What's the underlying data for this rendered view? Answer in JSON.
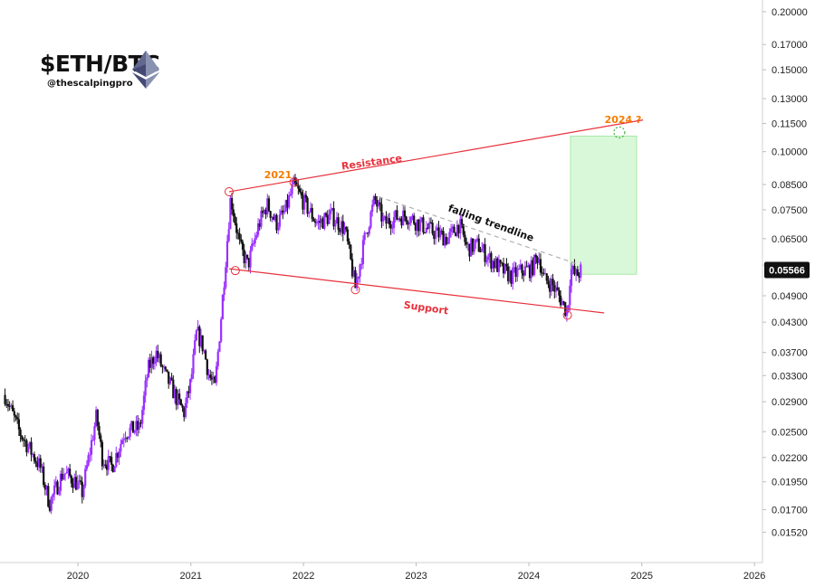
{
  "header": {
    "title": "$ETH/BTC",
    "handle": "@thescalpingpro"
  },
  "annotations": {
    "resistance": "Resistance",
    "support": "Support",
    "falling_trendline": "falling trendline",
    "year_2021": "2021",
    "target_2024": "2024 ?"
  },
  "colors": {
    "bull_candle": "#9b30ff",
    "bear_candle": "#111111",
    "channel_line": "#e8313c",
    "trendline": "#b0b0b0",
    "target_zone": "#ccf5cc",
    "annotation_orange": "#f57c00",
    "annotation_red": "#e8313c"
  },
  "icons": {
    "logo": "ethereum-diamond-icon"
  },
  "chart_data": {
    "type": "candlestick",
    "pair": "ETH/BTC",
    "y_scale": "log",
    "ylim": [
      0.0143,
      0.21
    ],
    "x_ticks": [
      "2020",
      "2021",
      "2022",
      "2023",
      "2024",
      "2025",
      "2026"
    ],
    "y_ticks": [
      "0.20000",
      "0.17000",
      "0.15000",
      "0.13000",
      "0.11500",
      "0.10000",
      "0.08500",
      "0.07500",
      "0.06500",
      "0.05700",
      "0.04900",
      "0.04300",
      "0.03700",
      "0.03300",
      "0.02900",
      "0.02500",
      "0.02200",
      "0.01950",
      "0.01700",
      "0.01520"
    ],
    "current_price": "0.05566",
    "close_path": [
      [
        "2019-05-10",
        0.03
      ],
      [
        "2019-06-25",
        0.025
      ],
      [
        "2019-09-01",
        0.021
      ],
      [
        "2019-10-01",
        0.0175
      ],
      [
        "2019-11-15",
        0.0205
      ],
      [
        "2019-12-25",
        0.0195
      ],
      [
        "2020-01-15",
        0.0185
      ],
      [
        "2020-03-01",
        0.027
      ],
      [
        "2020-03-20",
        0.022
      ],
      [
        "2020-04-20",
        0.021
      ],
      [
        "2020-06-01",
        0.025
      ],
      [
        "2020-07-20",
        0.0255
      ],
      [
        "2020-08-15",
        0.034
      ],
      [
        "2020-09-10",
        0.037
      ],
      [
        "2020-10-10",
        0.033
      ],
      [
        "2020-11-01",
        0.031
      ],
      [
        "2020-11-20",
        0.029
      ],
      [
        "2020-12-10",
        0.0275
      ],
      [
        "2021-01-01",
        0.032
      ],
      [
        "2021-01-20",
        0.041
      ],
      [
        "2021-02-10",
        0.038
      ],
      [
        "2021-03-01",
        0.033
      ],
      [
        "2021-03-20",
        0.031
      ],
      [
        "2021-04-10",
        0.045
      ],
      [
        "2021-04-25",
        0.06
      ],
      [
        "2021-05-10",
        0.08
      ],
      [
        "2021-06-10",
        0.062
      ],
      [
        "2021-07-05",
        0.057
      ],
      [
        "2021-08-10",
        0.07
      ],
      [
        "2021-09-05",
        0.077
      ],
      [
        "2021-10-05",
        0.07
      ],
      [
        "2021-11-01",
        0.074
      ],
      [
        "2021-12-01",
        0.085
      ],
      [
        "2022-01-01",
        0.078
      ],
      [
        "2022-02-15",
        0.07
      ],
      [
        "2022-04-01",
        0.073
      ],
      [
        "2022-05-15",
        0.068
      ],
      [
        "2022-06-18",
        0.051
      ],
      [
        "2022-07-20",
        0.066
      ],
      [
        "2022-08-20",
        0.079
      ],
      [
        "2022-09-20",
        0.07
      ],
      [
        "2022-10-20",
        0.072
      ],
      [
        "2022-12-01",
        0.073
      ],
      [
        "2023-01-10",
        0.07
      ],
      [
        "2023-03-01",
        0.067
      ],
      [
        "2023-04-15",
        0.065
      ],
      [
        "2023-05-20",
        0.07
      ],
      [
        "2023-06-15",
        0.062
      ],
      [
        "2023-07-20",
        0.063
      ],
      [
        "2023-08-25",
        0.059
      ],
      [
        "2023-10-01",
        0.056
      ],
      [
        "2023-11-05",
        0.054
      ],
      [
        "2023-12-10",
        0.0555
      ],
      [
        "2024-01-10",
        0.056
      ],
      [
        "2024-02-01",
        0.06
      ],
      [
        "2024-02-20",
        0.053
      ],
      [
        "2024-03-15",
        0.052
      ],
      [
        "2024-04-15",
        0.048
      ],
      [
        "2024-05-05",
        0.045
      ],
      [
        "2024-05-15",
        0.056
      ],
      [
        "2024-06-01",
        0.054
      ],
      [
        "2024-06-20",
        0.05566
      ]
    ],
    "lines": {
      "resistance": [
        [
          "2021-05-05",
          0.082
        ],
        [
          "2025-01-05",
          0.117
        ]
      ],
      "support": [
        [
          "2021-05-05",
          0.056
        ],
        [
          "2024-09-01",
          0.045
        ]
      ],
      "falling_trendline": [
        [
          "2022-09-01",
          0.08
        ],
        [
          "2024-06-01",
          0.0575
        ]
      ]
    },
    "target_zone": {
      "x": [
        "2024-05-15",
        "2024-12-15"
      ],
      "y": [
        0.0545,
        0.108
      ]
    },
    "markers": [
      {
        "type": "circle",
        "at": [
          "2021-05-05",
          0.082
        ]
      },
      {
        "type": "circle",
        "at": [
          "2021-12-01",
          0.086
        ]
      },
      {
        "type": "circle",
        "at": [
          "2021-05-25",
          0.0555
        ]
      },
      {
        "type": "circle",
        "at": [
          "2022-06-18",
          0.0505
        ]
      },
      {
        "type": "circle",
        "at": [
          "2024-05-05",
          0.0445
        ]
      },
      {
        "type": "dashed-circle",
        "at": [
          "2024-10-20",
          0.11
        ]
      }
    ]
  }
}
